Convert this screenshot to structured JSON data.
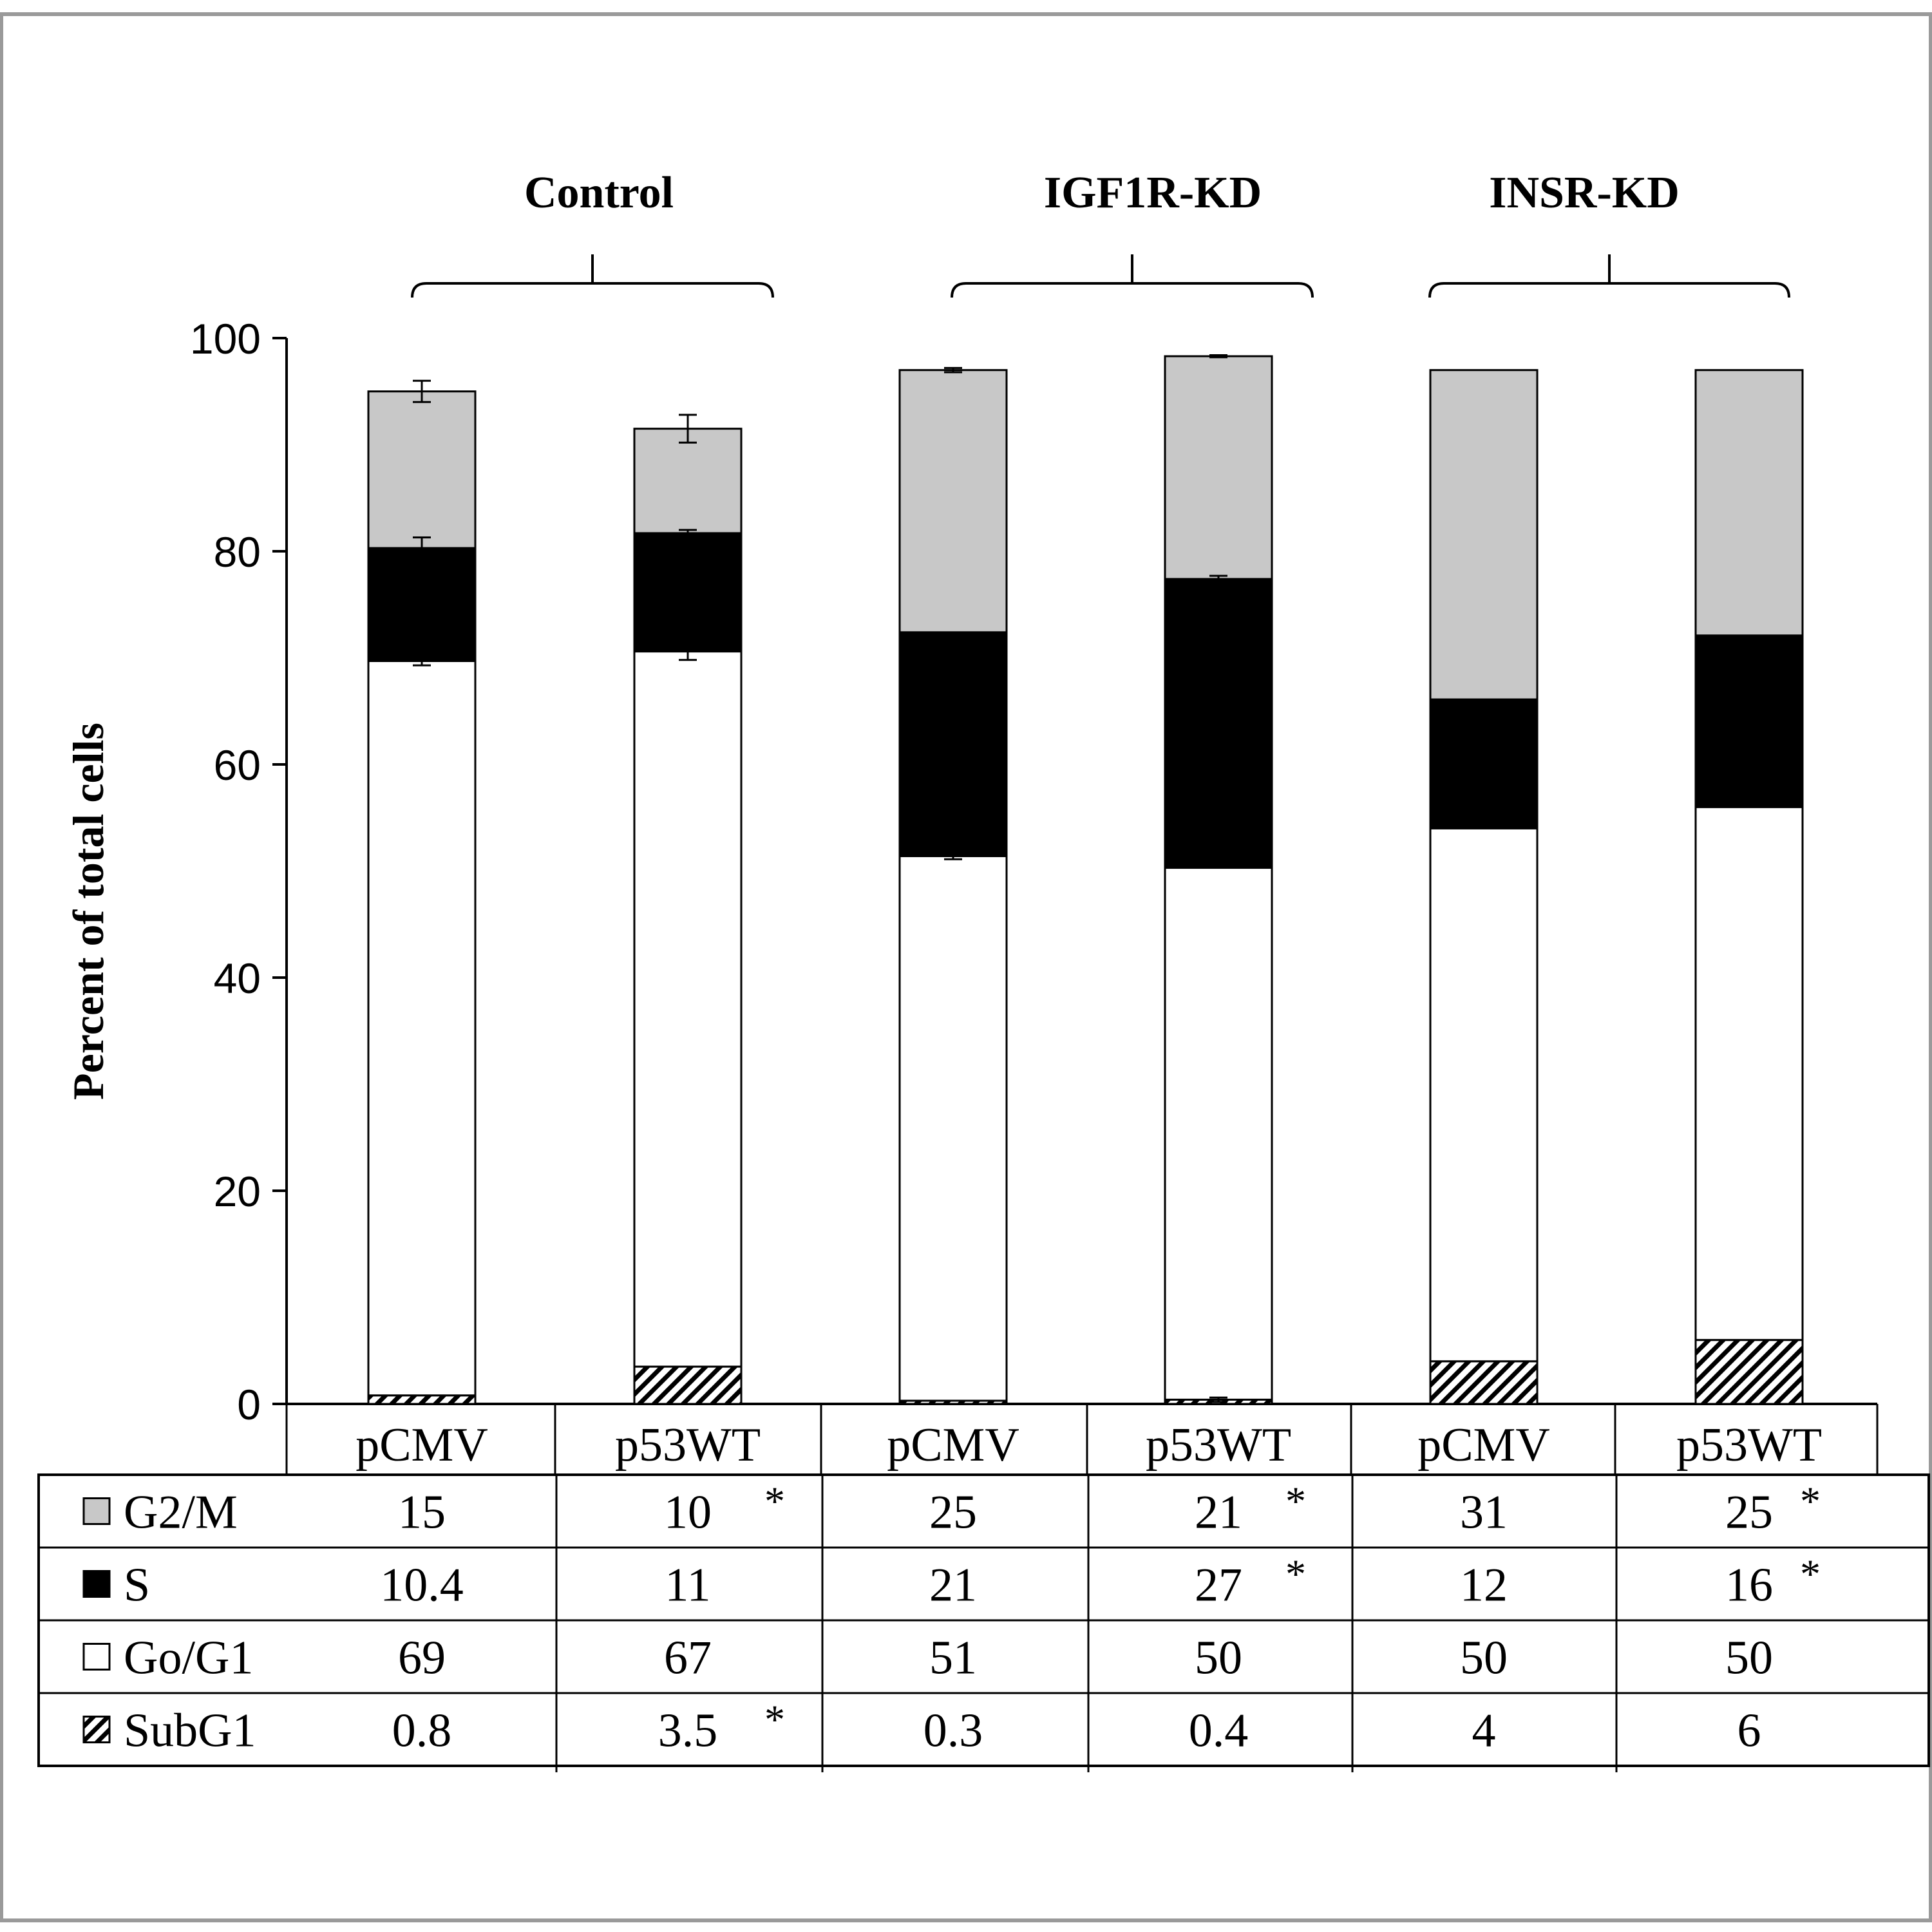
{
  "chart_data": {
    "type": "bar",
    "stacked": true,
    "ylabel": "Percent of total cells",
    "ylim": [
      0,
      100
    ],
    "yticks": [
      0,
      20,
      40,
      60,
      80,
      100
    ],
    "groups": [
      {
        "label": "Control",
        "categories": [
          0,
          1
        ]
      },
      {
        "label": "IGF1R-KD",
        "categories": [
          2,
          3
        ]
      },
      {
        "label": "INSR-KD",
        "categories": [
          4,
          5
        ]
      }
    ],
    "categories": [
      "pCMV",
      "p53WT",
      "pCMV",
      "p53WT",
      "pCMV",
      "p53WT"
    ],
    "series": [
      {
        "name": "SubG1",
        "key": "subg1",
        "values": [
          0.8,
          3.5,
          0.3,
          0.4,
          4,
          6
        ],
        "table": [
          "0.8",
          "3.5",
          "0.3",
          "0.4",
          "4",
          "6"
        ],
        "star": [
          false,
          true,
          false,
          false,
          false,
          false
        ],
        "fill": "hatch",
        "legend_icon": "hatched-square"
      },
      {
        "name": "Go/G1",
        "key": "g0g1",
        "values": [
          69,
          67,
          51,
          50,
          50,
          50
        ],
        "table": [
          "69",
          "67",
          "51",
          "50",
          "50",
          "50"
        ],
        "star": [
          false,
          false,
          false,
          false,
          false,
          false
        ],
        "fill": "#ffffff",
        "legend_icon": "white-square"
      },
      {
        "name": "S",
        "key": "s",
        "values": [
          10.4,
          11,
          21,
          27,
          12,
          16
        ],
        "table": [
          "10.4",
          "11",
          "21",
          "27",
          "12",
          "16"
        ],
        "star": [
          false,
          false,
          false,
          true,
          false,
          true
        ],
        "fill": "#000000",
        "legend_icon": "black-square"
      },
      {
        "name": "G2/M",
        "key": "g2m",
        "values": [
          15,
          10,
          25,
          21,
          31,
          25
        ],
        "table": [
          "15",
          "10",
          "25",
          "21",
          "31",
          "25"
        ],
        "star": [
          false,
          true,
          false,
          true,
          false,
          true
        ],
        "fill": "#c8c8c8",
        "legend_icon": "gray-square"
      }
    ],
    "bar_tops": [
      95,
      91.5,
      97,
      98.3,
      97,
      97
    ],
    "boundaries": [
      [
        0.8,
        69.7,
        80.3,
        95
      ],
      [
        3.5,
        70.6,
        81.7,
        91.5
      ],
      [
        0.3,
        51.4,
        72.4,
        97
      ],
      [
        0.4,
        50.3,
        77.4,
        98.3
      ],
      [
        4,
        54,
        66.1,
        97
      ],
      [
        6,
        56,
        72.1,
        97
      ]
    ],
    "table_row_order": [
      "g2m",
      "s",
      "g0g1",
      "subg1"
    ],
    "significance_marker": "*"
  }
}
